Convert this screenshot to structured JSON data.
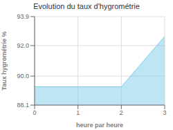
{
  "chart_data": {
    "type": "area",
    "title": "Evolution du taux d'hygrométrie",
    "xlabel": "heure par heure",
    "ylabel": "Taux hygrométrie %",
    "x": [
      0,
      2,
      3
    ],
    "values": [
      89.3,
      89.3,
      92.6
    ],
    "xlim": [
      0,
      3
    ],
    "ylim": [
      88.1,
      93.9
    ],
    "xticks": [
      0,
      1,
      2,
      3
    ],
    "yticks": [
      88.1,
      {
        "value": 90.0,
        "label": "90.0"
      },
      {
        "value": 92.0,
        "label": "92.0"
      },
      93.9
    ],
    "color": "#7dcce8",
    "grid": true
  }
}
